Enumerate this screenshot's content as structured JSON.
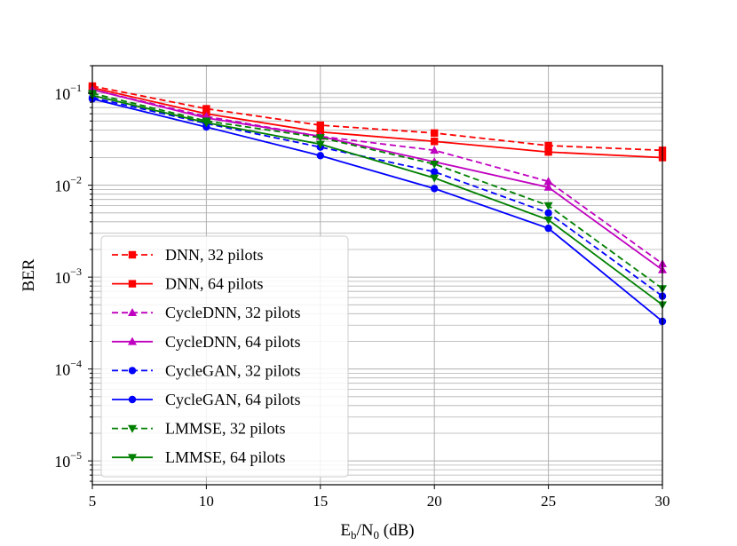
{
  "chart_data": {
    "type": "line",
    "title": "",
    "xlabel_main": "E",
    "xlabel_sub1": "b",
    "xlabel_mid": "/N",
    "xlabel_sub2": "0",
    "xlabel_unit": " (dB)",
    "ylabel": "BER",
    "xlim": [
      5,
      30
    ],
    "ylim": [
      5.5e-06,
      0.2
    ],
    "yscale": "log",
    "grid": true,
    "legend_position": "lower-left",
    "x_ticks": [
      5,
      10,
      15,
      20,
      25,
      30
    ],
    "x_tick_labels": [
      "5",
      "10",
      "15",
      "20",
      "25",
      "30"
    ],
    "y_ticks": [
      {
        "value": 0.1,
        "base": "10",
        "exp": "−1"
      },
      {
        "value": 0.01,
        "base": "10",
        "exp": "−2"
      },
      {
        "value": 0.001,
        "base": "10",
        "exp": "−3"
      },
      {
        "value": 0.0001,
        "base": "10",
        "exp": "−4"
      },
      {
        "value": 1e-05,
        "base": "10",
        "exp": "−5"
      }
    ],
    "x": [
      5,
      10,
      15,
      20,
      25,
      30
    ],
    "series": [
      {
        "name": "DNN, 32 pilots",
        "color": "#ff0000",
        "dashed": true,
        "marker": "square",
        "values": [
          0.12,
          0.068,
          0.045,
          0.037,
          0.027,
          0.024
        ]
      },
      {
        "name": "DNN, 64 pilots",
        "color": "#ff0000",
        "dashed": false,
        "marker": "square",
        "values": [
          0.115,
          0.06,
          0.038,
          0.03,
          0.023,
          0.02
        ]
      },
      {
        "name": "CycleDNN, 32 pilots",
        "color": "#c000c0",
        "dashed": true,
        "marker": "triangle-up",
        "values": [
          0.11,
          0.056,
          0.034,
          0.024,
          0.011,
          0.0014
        ]
      },
      {
        "name": "CycleDNN, 64 pilots",
        "color": "#c000c0",
        "dashed": false,
        "marker": "triangle-up",
        "values": [
          0.11,
          0.054,
          0.034,
          0.018,
          0.0095,
          0.0012
        ]
      },
      {
        "name": "CycleGAN, 32 pilots",
        "color": "#0000ff",
        "dashed": true,
        "marker": "circle",
        "values": [
          0.09,
          0.047,
          0.026,
          0.014,
          0.005,
          0.00062
        ]
      },
      {
        "name": "CycleGAN, 64 pilots",
        "color": "#0000ff",
        "dashed": false,
        "marker": "circle",
        "values": [
          0.087,
          0.043,
          0.021,
          0.0092,
          0.0034,
          0.00033
        ]
      },
      {
        "name": "LMMSE, 32 pilots",
        "color": "#008000",
        "dashed": true,
        "marker": "triangle-down",
        "values": [
          0.1,
          0.05,
          0.033,
          0.017,
          0.006,
          0.00075
        ]
      },
      {
        "name": "LMMSE, 64 pilots",
        "color": "#008000",
        "dashed": false,
        "marker": "triangle-down",
        "values": [
          0.095,
          0.048,
          0.028,
          0.012,
          0.0042,
          0.0005
        ]
      }
    ]
  }
}
